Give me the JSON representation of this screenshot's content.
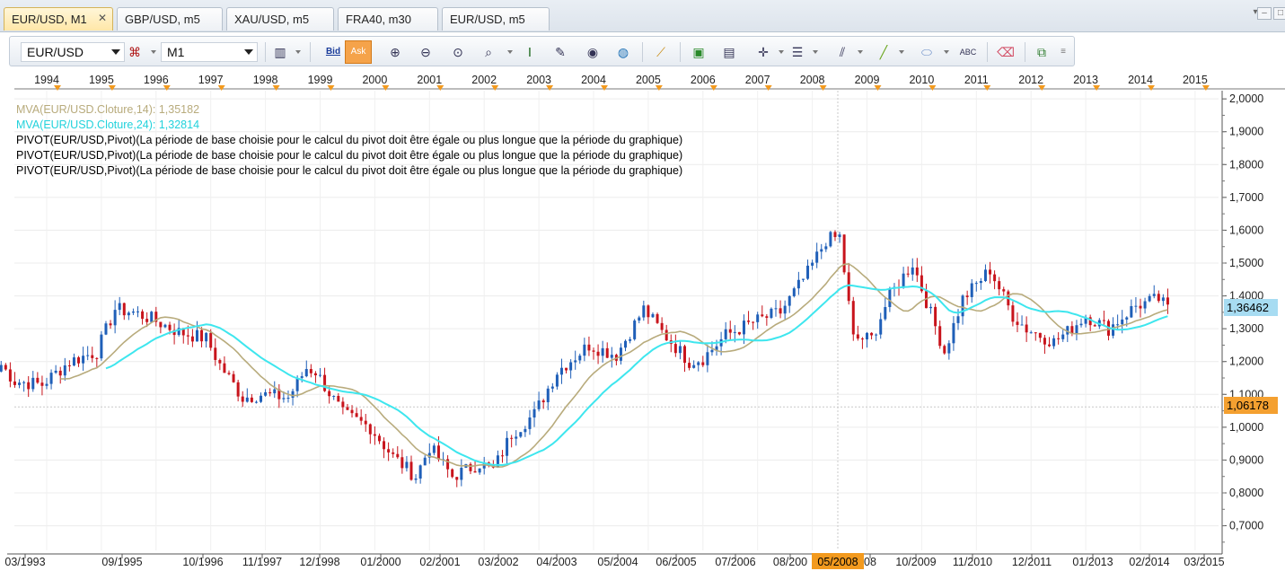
{
  "tabs": [
    {
      "label": "EUR/USD, M1",
      "active": true
    },
    {
      "label": "GBP/USD, m5",
      "active": false
    },
    {
      "label": "XAU/USD, m5",
      "active": false
    },
    {
      "label": "FRA40, m30",
      "active": false
    },
    {
      "label": "EUR/USD, m5",
      "active": false
    }
  ],
  "tab_close": "✕",
  "window_buttons": [
    "▾",
    "–",
    "□"
  ],
  "toolbar": {
    "symbol": "EUR/USD",
    "timeframe": "M1",
    "bid_label": "Bid",
    "ask_label": "Ask",
    "more": "≡"
  },
  "legend": {
    "mva14": "MVA(EUR/USD.Cloture,14): 1,35182",
    "mva24": "MVA(EUR/USD.Cloture,24): 1,32814",
    "pivots": [
      "PIVOT(EUR/USD,Pivot)(La période de base choisie pour le calcul du pivot doit être égale ou plus longue que la période du graphique)",
      "PIVOT(EUR/USD,Pivot)(La période de base choisie pour le calcul du pivot doit être égale ou plus longue que la période du graphique)",
      "PIVOT(EUR/USD,Pivot)(La période de base choisie pour le calcul du pivot doit être égale ou plus longue que la période du graphique)"
    ]
  },
  "colors": {
    "up": "#1f5fb8",
    "down": "#c8141c",
    "mva14": "#b8ab7c",
    "mva24": "#3ee6ee",
    "tag_last": "#a7dcf2",
    "tag_line": "#f4a030"
  },
  "chart_data": {
    "type": "candlestick",
    "instrument": "EUR/USD",
    "period": "M1",
    "y_ticks": [
      "0,7000",
      "0,8000",
      "0,9000",
      "1,0000",
      "1,1000",
      "1,2000",
      "1,3000",
      "1,4000",
      "1,5000",
      "1,6000",
      "1,7000",
      "1,8000",
      "1,9000",
      "2,0000"
    ],
    "ylim": [
      0.625,
      2.025
    ],
    "year_labels": [
      "1994",
      "1995",
      "1996",
      "1997",
      "1998",
      "1999",
      "2000",
      "2001",
      "2002",
      "2003",
      "2004",
      "2005",
      "2006",
      "2007",
      "2008",
      "2009",
      "2010",
      "2011",
      "2012",
      "2013",
      "2014",
      "2015"
    ],
    "date_labels": [
      "03/1993",
      "09/1995",
      "10/1996",
      "11/1997",
      "12/1998",
      "01/2000",
      "02/2001",
      "03/2002",
      "04/2003",
      "05/2004",
      "06/2005",
      "07/2006",
      "08/200",
      "05/2008",
      "08",
      "10/2009",
      "11/2010",
      "12/2011",
      "01/2013",
      "02/2014",
      "03/2015"
    ],
    "cursor_date": "05/2008",
    "last_price": "1,36462",
    "marked_price": "1,06178",
    "marked_price_value": 1.06178,
    "last_price_value": 1.36462,
    "close_anchors": [
      [
        "1993-03",
        1.19
      ],
      [
        "1993-06",
        1.14
      ],
      [
        "1993-12",
        1.13
      ],
      [
        "1994-06",
        1.2
      ],
      [
        "1994-12",
        1.23
      ],
      [
        "1995-04",
        1.36
      ],
      [
        "1995-08",
        1.35
      ],
      [
        "1995-12",
        1.33
      ],
      [
        "1996-06",
        1.29
      ],
      [
        "1996-12",
        1.27
      ],
      [
        "1997-03",
        1.19
      ],
      [
        "1997-08",
        1.09
      ],
      [
        "1997-12",
        1.1
      ],
      [
        "1998-06",
        1.09
      ],
      [
        "1998-10",
        1.18
      ],
      [
        "1998-12",
        1.17
      ],
      [
        "1999-06",
        1.04
      ],
      [
        "1999-12",
        1.0
      ],
      [
        "2000-05",
        0.91
      ],
      [
        "2000-10",
        0.85
      ],
      [
        "2001-01",
        0.94
      ],
      [
        "2001-06",
        0.85
      ],
      [
        "2001-12",
        0.89
      ],
      [
        "2002-03",
        0.87
      ],
      [
        "2002-07",
        0.98
      ],
      [
        "2002-12",
        1.04
      ],
      [
        "2003-05",
        1.17
      ],
      [
        "2003-12",
        1.25
      ],
      [
        "2004-06",
        1.22
      ],
      [
        "2004-12",
        1.36
      ],
      [
        "2005-04",
        1.29
      ],
      [
        "2005-10",
        1.2
      ],
      [
        "2006-01",
        1.21
      ],
      [
        "2006-06",
        1.28
      ],
      [
        "2006-12",
        1.32
      ],
      [
        "2007-06",
        1.35
      ],
      [
        "2007-12",
        1.47
      ],
      [
        "2008-04",
        1.57
      ],
      [
        "2008-07",
        1.58
      ],
      [
        "2008-10",
        1.27
      ],
      [
        "2009-02",
        1.27
      ],
      [
        "2009-06",
        1.4
      ],
      [
        "2009-11",
        1.5
      ],
      [
        "2010-06",
        1.23
      ],
      [
        "2010-10",
        1.39
      ],
      [
        "2011-04",
        1.48
      ],
      [
        "2011-09",
        1.34
      ],
      [
        "2011-12",
        1.3
      ],
      [
        "2012-06",
        1.26
      ],
      [
        "2012-09",
        1.29
      ],
      [
        "2013-01",
        1.34
      ],
      [
        "2013-06",
        1.3
      ],
      [
        "2013-12",
        1.37
      ],
      [
        "2014-05",
        1.39
      ],
      [
        "2014-07",
        1.36
      ]
    ],
    "series": [
      {
        "name": "MVA(EUR/USD.Cloture,14)",
        "period": 14
      },
      {
        "name": "MVA(EUR/USD.Cloture,24)",
        "period": 24
      }
    ]
  }
}
